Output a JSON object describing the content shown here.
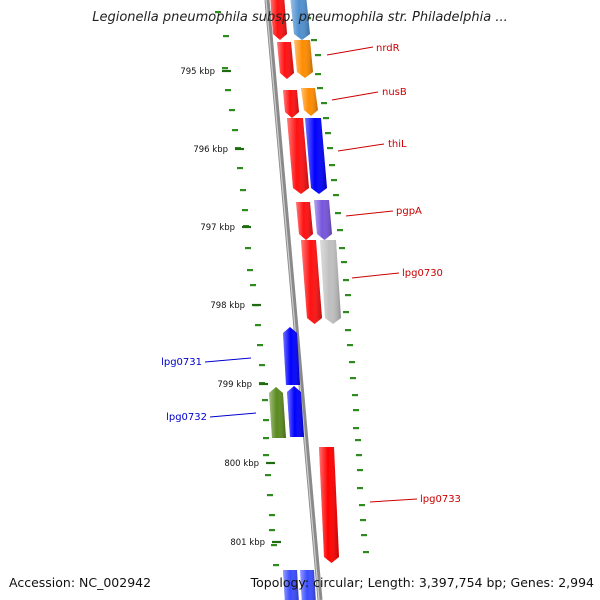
{
  "title": "Legionella pneumophila subsp. pneumophila str. Philadelphia ...",
  "accession": "Accession: NC_002942",
  "summary": "Topology: circular; Length: 3,397,754 bp; Genes: 2,994",
  "colors": {
    "backbone": "#8a8a8a",
    "gc_dots": "#2e8b1e",
    "label_forward": "#cc0000",
    "label_reverse": "#0000cc"
  },
  "tick_labels": [
    "795 kbp",
    "796 kbp",
    "797 kbp",
    "798 kbp",
    "799 kbp",
    "800 kbp",
    "801 kbp"
  ],
  "genes": [
    {
      "label": "nrdR",
      "strand": "forward",
      "color": "#ff8c00"
    },
    {
      "label": "nusB",
      "strand": "forward",
      "color": "#ff8c00"
    },
    {
      "label": "thiL",
      "strand": "forward",
      "color": "#0000ff"
    },
    {
      "label": "pgpA",
      "strand": "forward",
      "color": "#7755dd"
    },
    {
      "label": "lpg0730",
      "strand": "forward",
      "color": "#c0c0c0"
    },
    {
      "label": "lpg0731",
      "strand": "reverse",
      "color": "#0000ff"
    },
    {
      "label": "lpg0732",
      "strand": "reverse",
      "color": "#0000ff"
    },
    {
      "label": "lpg0733",
      "strand": "forward",
      "color": "#ff0000"
    }
  ]
}
